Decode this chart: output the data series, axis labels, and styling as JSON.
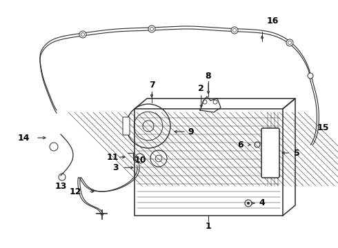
{
  "bg_color": "#ffffff",
  "line_color": "#2a2a2a",
  "label_color": "#000000",
  "figsize": [
    4.9,
    3.6
  ],
  "dpi": 100
}
